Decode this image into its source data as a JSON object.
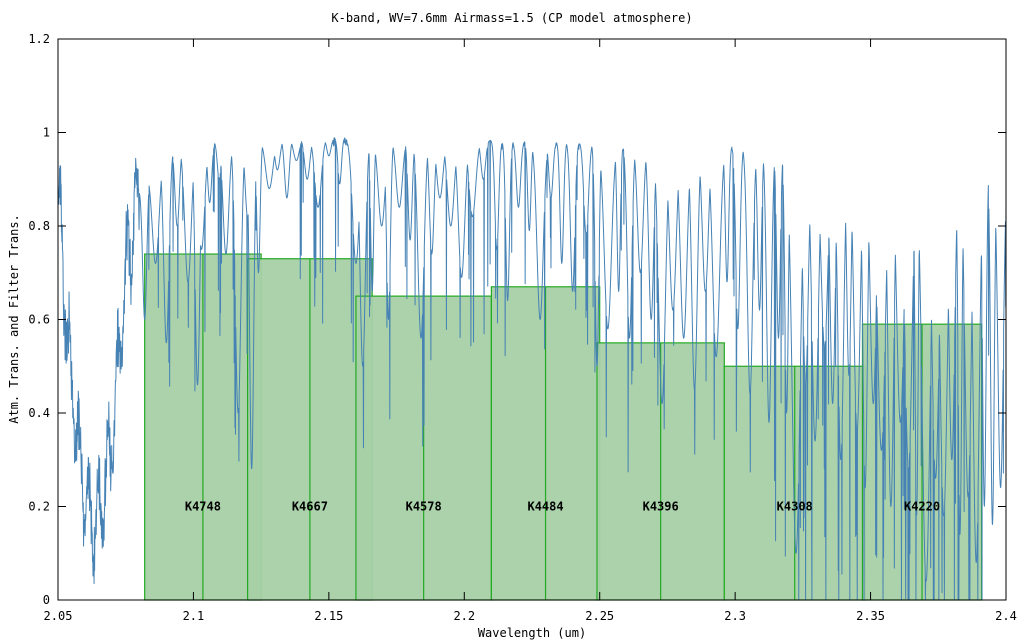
{
  "chart_data": {
    "type": "line",
    "title": "K-band, WV=7.6mm  Airmass=1.5 (CP model atmosphere)",
    "xlabel": "Wavelength (um)",
    "ylabel": "Atm. Trans. and Filter Trans.",
    "xlim": [
      2.05,
      2.4
    ],
    "ylim": [
      0,
      1.2
    ],
    "x_ticks": [
      2.05,
      2.1,
      2.15,
      2.2,
      2.25,
      2.3,
      2.35,
      2.4
    ],
    "x_tick_labels": [
      "2.05",
      "2.1",
      "2.15",
      "2.2",
      "2.25",
      "2.3",
      "2.35",
      "2.4"
    ],
    "y_ticks": [
      0,
      0.2,
      0.4,
      0.6,
      0.8,
      1,
      1.2
    ],
    "y_tick_labels": [
      "0",
      "0.2",
      "0.4",
      "0.6",
      "0.8",
      "1",
      "1.2"
    ],
    "grid": false,
    "legend": "none",
    "atmosphere": {
      "color": "#4682b4",
      "envelope": [
        [
          2.05,
          0.88
        ],
        [
          2.052,
          0.7
        ],
        [
          2.055,
          0.45
        ],
        [
          2.058,
          0.3
        ],
        [
          2.06,
          0.22
        ],
        [
          2.063,
          0.15
        ],
        [
          2.066,
          0.2
        ],
        [
          2.07,
          0.35
        ],
        [
          2.073,
          0.55
        ],
        [
          2.076,
          0.75
        ],
        [
          2.08,
          0.88
        ],
        [
          2.085,
          0.94
        ],
        [
          2.09,
          0.97
        ],
        [
          2.1,
          0.98
        ],
        [
          2.12,
          0.985
        ],
        [
          2.14,
          0.99
        ],
        [
          2.16,
          0.99
        ],
        [
          2.2,
          0.985
        ],
        [
          2.25,
          0.98
        ],
        [
          2.3,
          0.975
        ],
        [
          2.32,
          0.97
        ],
        [
          2.33,
          0.93
        ],
        [
          2.34,
          0.95
        ],
        [
          2.36,
          0.96
        ],
        [
          2.38,
          0.95
        ],
        [
          2.4,
          0.94
        ]
      ],
      "absorption_lines": [
        [
          2.082,
          0.6
        ],
        [
          2.086,
          0.72
        ],
        [
          2.09,
          0.55
        ],
        [
          2.094,
          0.8
        ],
        [
          2.098,
          0.68
        ],
        [
          2.1015,
          0.46
        ],
        [
          2.103,
          0.75
        ],
        [
          2.106,
          0.85
        ],
        [
          2.1095,
          0.9
        ],
        [
          2.112,
          0.74
        ],
        [
          2.1165,
          0.4
        ],
        [
          2.12,
          0.82
        ],
        [
          2.1215,
          0.28
        ],
        [
          2.124,
          0.7
        ],
        [
          2.128,
          0.88
        ],
        [
          2.131,
          0.92
        ],
        [
          2.1345,
          0.86
        ],
        [
          2.138,
          0.94
        ],
        [
          2.142,
          0.9
        ],
        [
          2.146,
          0.84
        ],
        [
          2.15,
          0.95
        ],
        [
          2.154,
          0.89
        ],
        [
          2.16,
          0.72
        ],
        [
          2.1625,
          0.5
        ],
        [
          2.166,
          0.66
        ],
        [
          2.1695,
          0.8
        ],
        [
          2.172,
          0.6
        ],
        [
          2.176,
          0.84
        ],
        [
          2.18,
          0.77
        ],
        [
          2.184,
          0.56
        ],
        [
          2.188,
          0.74
        ],
        [
          2.191,
          0.86
        ],
        [
          2.195,
          0.8
        ],
        [
          2.199,
          0.69
        ],
        [
          2.203,
          0.82
        ],
        [
          2.207,
          0.9
        ],
        [
          2.212,
          0.75
        ],
        [
          2.216,
          0.64
        ],
        [
          2.22,
          0.84
        ],
        [
          2.224,
          0.79
        ],
        [
          2.228,
          0.6
        ],
        [
          2.232,
          0.86
        ],
        [
          2.236,
          0.72
        ],
        [
          2.24,
          0.66
        ],
        [
          2.245,
          0.78
        ],
        [
          2.249,
          0.5
        ],
        [
          2.253,
          0.58
        ],
        [
          2.257,
          0.66
        ],
        [
          2.261,
          0.56
        ],
        [
          2.265,
          0.7
        ],
        [
          2.269,
          0.6
        ],
        [
          2.273,
          0.42
        ],
        [
          2.277,
          0.62
        ],
        [
          2.281,
          0.56
        ],
        [
          2.285,
          0.45
        ],
        [
          2.289,
          0.66
        ],
        [
          2.293,
          0.52
        ],
        [
          2.297,
          0.68
        ],
        [
          2.301,
          0.58
        ],
        [
          2.3055,
          0.44
        ],
        [
          2.309,
          0.62
        ],
        [
          2.3125,
          0.38
        ],
        [
          2.316,
          0.56
        ],
        [
          2.319,
          0.4
        ],
        [
          2.3225,
          0.1
        ],
        [
          2.326,
          0.46
        ],
        [
          2.3295,
          0.34
        ],
        [
          2.333,
          0.54
        ],
        [
          2.336,
          0.42
        ],
        [
          2.339,
          0.3
        ],
        [
          2.342,
          0.48
        ],
        [
          2.345,
          0.36
        ],
        [
          2.348,
          0.24
        ],
        [
          2.351,
          0.42
        ],
        [
          2.354,
          0.32
        ],
        [
          2.3575,
          0.2
        ],
        [
          2.361,
          0.38
        ],
        [
          2.364,
          0.28
        ],
        [
          2.367,
          0.18
        ],
        [
          2.3705,
          0.04
        ],
        [
          2.374,
          0.26
        ],
        [
          2.377,
          0.18
        ],
        [
          2.38,
          0.3
        ],
        [
          2.383,
          0.14
        ],
        [
          2.386,
          0.22
        ],
        [
          2.389,
          0.08
        ],
        [
          2.392,
          0.2
        ],
        [
          2.395,
          0.16
        ],
        [
          2.398,
          0.24
        ]
      ],
      "texture_seed": 17
    },
    "filters": [
      {
        "name": "K4748",
        "x0": 2.082,
        "x1": 2.125,
        "peak": 0.74,
        "center": 2.1035
      },
      {
        "name": "K4667",
        "x0": 2.12,
        "x1": 2.166,
        "peak": 0.73,
        "center": 2.143
      },
      {
        "name": "K4578",
        "x0": 2.16,
        "x1": 2.21,
        "peak": 0.65,
        "center": 2.185
      },
      {
        "name": "K4484",
        "x0": 2.21,
        "x1": 2.25,
        "peak": 0.67,
        "center": 2.23
      },
      {
        "name": "K4396",
        "x0": 2.249,
        "x1": 2.296,
        "peak": 0.55,
        "center": 2.2725
      },
      {
        "name": "K4308",
        "x0": 2.296,
        "x1": 2.348,
        "peak": 0.5,
        "center": 2.322
      },
      {
        "name": "K4220",
        "x0": 2.347,
        "x1": 2.391,
        "peak": 0.59,
        "center": 2.369
      }
    ],
    "filter_label_y": 0.2,
    "filter_fill_color": "#a7d0a7",
    "filter_stroke_color": "#22aa22",
    "filter_fill_opacity": 0.95
  }
}
